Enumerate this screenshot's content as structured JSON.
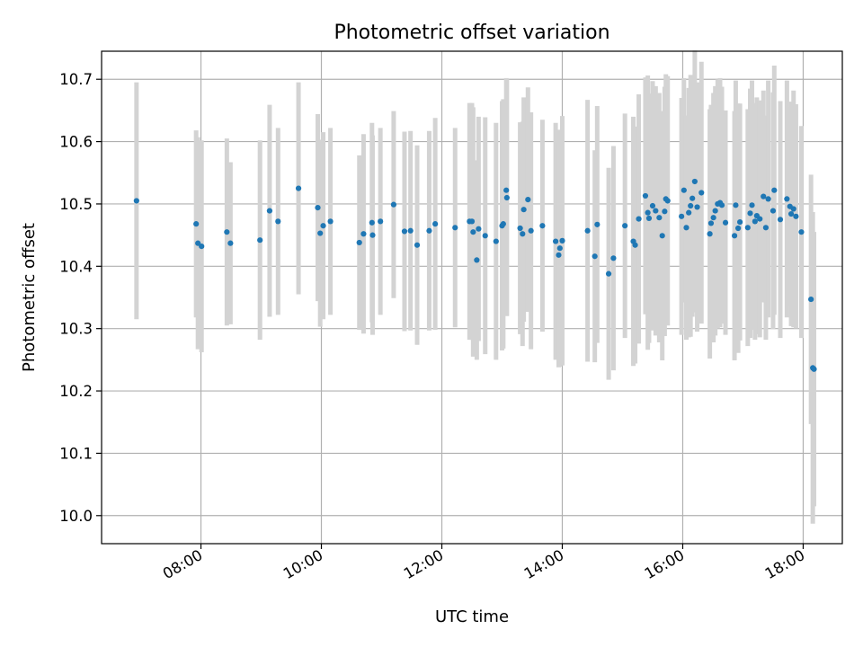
{
  "chart_data": {
    "type": "scatter",
    "title": "Photometric offset variation",
    "xlabel": "UTC time",
    "ylabel": "Photometric offset",
    "x_unit": "hours UTC",
    "xlim": [
      6.35,
      18.65
    ],
    "ylim": [
      9.955,
      10.745
    ],
    "grid": true,
    "xticks": [
      {
        "value": 8,
        "label": "08:00"
      },
      {
        "value": 10,
        "label": "10:00"
      },
      {
        "value": 12,
        "label": "12:00"
      },
      {
        "value": 14,
        "label": "14:00"
      },
      {
        "value": 16,
        "label": "16:00"
      },
      {
        "value": 18,
        "label": "18:00"
      }
    ],
    "yticks": [
      {
        "value": 10.0,
        "label": "10.0"
      },
      {
        "value": 10.1,
        "label": "10.1"
      },
      {
        "value": 10.2,
        "label": "10.2"
      },
      {
        "value": 10.3,
        "label": "10.3"
      },
      {
        "value": 10.4,
        "label": "10.4"
      },
      {
        "value": 10.5,
        "label": "10.5"
      },
      {
        "value": 10.6,
        "label": "10.6"
      },
      {
        "value": 10.7,
        "label": "10.7"
      }
    ],
    "colors": {
      "point": "#1f77b4",
      "errorbar": "#d3d3d3",
      "grid": "#b0b0b0"
    },
    "points": [
      [
        6.93,
        10.505,
        0.19
      ],
      [
        7.92,
        10.468,
        0.15
      ],
      [
        7.95,
        10.437,
        0.17
      ],
      [
        8.01,
        10.432,
        0.17
      ],
      [
        8.43,
        10.455,
        0.15
      ],
      [
        8.49,
        10.437,
        0.13
      ],
      [
        8.98,
        10.442,
        0.16
      ],
      [
        9.14,
        10.489,
        0.17
      ],
      [
        9.28,
        10.472,
        0.15
      ],
      [
        9.62,
        10.525,
        0.17
      ],
      [
        9.94,
        10.494,
        0.15
      ],
      [
        9.98,
        10.453,
        0.15
      ],
      [
        10.03,
        10.465,
        0.15
      ],
      [
        10.15,
        10.472,
        0.15
      ],
      [
        10.63,
        10.438,
        0.14
      ],
      [
        10.7,
        10.452,
        0.16
      ],
      [
        10.84,
        10.47,
        0.16
      ],
      [
        10.85,
        10.45,
        0.16
      ],
      [
        10.98,
        10.472,
        0.15
      ],
      [
        11.2,
        10.499,
        0.15
      ],
      [
        11.38,
        10.456,
        0.16
      ],
      [
        11.48,
        10.457,
        0.16
      ],
      [
        11.59,
        10.434,
        0.16
      ],
      [
        11.79,
        10.457,
        0.16
      ],
      [
        11.89,
        10.468,
        0.17
      ],
      [
        12.22,
        10.462,
        0.16
      ],
      [
        12.46,
        10.472,
        0.19
      ],
      [
        12.5,
        10.472,
        0.19
      ],
      [
        12.52,
        10.455,
        0.2
      ],
      [
        12.58,
        10.41,
        0.16
      ],
      [
        12.61,
        10.46,
        0.18
      ],
      [
        12.72,
        10.449,
        0.19
      ],
      [
        12.9,
        10.44,
        0.19
      ],
      [
        13.0,
        10.465,
        0.2
      ],
      [
        13.02,
        10.468,
        0.2
      ],
      [
        13.07,
        10.522,
        0.18
      ],
      [
        13.08,
        10.51,
        0.19
      ],
      [
        13.3,
        10.461,
        0.17
      ],
      [
        13.34,
        10.452,
        0.18
      ],
      [
        13.36,
        10.491,
        0.18
      ],
      [
        13.43,
        10.507,
        0.18
      ],
      [
        13.48,
        10.457,
        0.19
      ],
      [
        13.67,
        10.465,
        0.17
      ],
      [
        13.89,
        10.44,
        0.19
      ],
      [
        13.94,
        10.418,
        0.18
      ],
      [
        13.96,
        10.429,
        0.19
      ],
      [
        14.0,
        10.441,
        0.2
      ],
      [
        14.42,
        10.457,
        0.21
      ],
      [
        14.54,
        10.416,
        0.17
      ],
      [
        14.58,
        10.467,
        0.19
      ],
      [
        14.77,
        10.388,
        0.17
      ],
      [
        14.85,
        10.413,
        0.18
      ],
      [
        15.04,
        10.465,
        0.18
      ],
      [
        15.18,
        10.44,
        0.2
      ],
      [
        15.21,
        10.434,
        0.19
      ],
      [
        15.27,
        10.476,
        0.2
      ],
      [
        15.38,
        10.513,
        0.19
      ],
      [
        15.42,
        10.486,
        0.22
      ],
      [
        15.44,
        10.477,
        0.2
      ],
      [
        15.5,
        10.497,
        0.2
      ],
      [
        15.55,
        10.489,
        0.2
      ],
      [
        15.61,
        10.478,
        0.2
      ],
      [
        15.66,
        10.449,
        0.2
      ],
      [
        15.7,
        10.488,
        0.2
      ],
      [
        15.72,
        10.508,
        0.2
      ],
      [
        15.75,
        10.505,
        0.2
      ],
      [
        15.98,
        10.48,
        0.19
      ],
      [
        16.02,
        10.522,
        0.18
      ],
      [
        16.06,
        10.462,
        0.18
      ],
      [
        16.1,
        10.486,
        0.2
      ],
      [
        16.13,
        10.497,
        0.21
      ],
      [
        16.16,
        10.509,
        0.19
      ],
      [
        16.2,
        10.536,
        0.21
      ],
      [
        16.24,
        10.495,
        0.2
      ],
      [
        16.31,
        10.518,
        0.21
      ],
      [
        16.45,
        10.452,
        0.2
      ],
      [
        16.47,
        10.469,
        0.19
      ],
      [
        16.51,
        10.478,
        0.2
      ],
      [
        16.54,
        10.489,
        0.2
      ],
      [
        16.58,
        10.5,
        0.2
      ],
      [
        16.62,
        10.502,
        0.2
      ],
      [
        16.65,
        10.498,
        0.19
      ],
      [
        16.71,
        10.47,
        0.18
      ],
      [
        16.86,
        10.449,
        0.2
      ],
      [
        16.88,
        10.498,
        0.2
      ],
      [
        16.92,
        10.461,
        0.2
      ],
      [
        16.95,
        10.471,
        0.19
      ],
      [
        17.08,
        10.462,
        0.19
      ],
      [
        17.12,
        10.485,
        0.2
      ],
      [
        17.15,
        10.498,
        0.2
      ],
      [
        17.2,
        10.472,
        0.19
      ],
      [
        17.23,
        10.481,
        0.19
      ],
      [
        17.28,
        10.476,
        0.19
      ],
      [
        17.34,
        10.512,
        0.17
      ],
      [
        17.38,
        10.462,
        0.18
      ],
      [
        17.42,
        10.508,
        0.19
      ],
      [
        17.5,
        10.489,
        0.19
      ],
      [
        17.52,
        10.522,
        0.2
      ],
      [
        17.62,
        10.475,
        0.19
      ],
      [
        17.73,
        10.508,
        0.19
      ],
      [
        17.78,
        10.496,
        0.16
      ],
      [
        17.8,
        10.484,
        0.18
      ],
      [
        17.84,
        10.492,
        0.19
      ],
      [
        17.88,
        10.48,
        0.18
      ],
      [
        17.97,
        10.455,
        0.17
      ],
      [
        18.13,
        10.347,
        0.2
      ],
      [
        18.16,
        10.237,
        0.25
      ],
      [
        18.18,
        10.235,
        0.22
      ]
    ]
  }
}
